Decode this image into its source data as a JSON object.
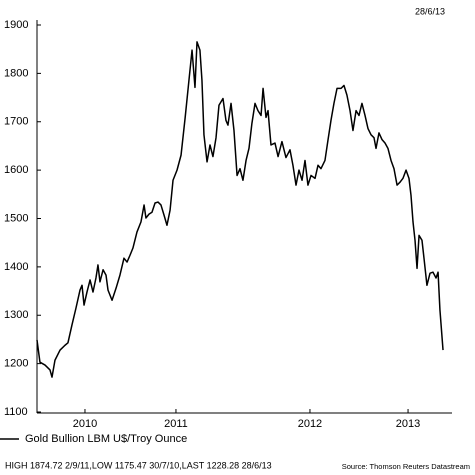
{
  "chart_data": {
    "type": "line",
    "date_label": "28/6/13",
    "footnote": "HIGH 1874.72 2/9/11,LOW 1175.47 30/7/10,LAST 1228.28 28/6/13",
    "source": "Source: Thomson Reuters Datastream",
    "x": [
      2010.45,
      2010.472,
      2010.51,
      2010.547,
      2010.562,
      2010.584,
      2010.622,
      2010.659,
      2010.681,
      2010.711,
      2010.741,
      2010.771,
      2010.786,
      2010.801,
      2010.823,
      2010.846,
      2010.868,
      2010.89,
      2010.905,
      2010.92,
      2010.943,
      2010.965,
      2010.98,
      2011.01,
      2011.04,
      2011.069,
      2011.099,
      2011.122,
      2011.144,
      2011.166,
      2011.196,
      2011.226,
      2011.249,
      2011.263,
      2011.286,
      2011.308,
      2011.331,
      2011.353,
      2011.375,
      2011.398,
      2011.42,
      2011.443,
      2011.465,
      2011.495,
      2011.525,
      2011.555,
      2011.584,
      2011.607,
      2011.629,
      2011.644,
      2011.666,
      2011.681,
      2011.696,
      2011.719,
      2011.741,
      2011.763,
      2011.786,
      2011.808,
      2011.838,
      2011.86,
      2011.875,
      2011.898,
      2011.92,
      2011.943,
      2011.965,
      2011.987,
      2012.01,
      2012.032,
      2012.054,
      2012.077,
      2012.099,
      2012.122,
      2012.137,
      2012.159,
      2012.174,
      2012.196,
      2012.226,
      2012.249,
      2012.278,
      2012.308,
      2012.338,
      2012.36,
      2012.383,
      2012.405,
      2012.428,
      2012.45,
      2012.472,
      2012.495,
      2012.525,
      2012.547,
      2012.569,
      2012.599,
      2012.622,
      2012.644,
      2012.666,
      2012.689,
      2012.719,
      2012.741,
      2012.763,
      2012.786,
      2012.808,
      2012.831,
      2012.853,
      2012.875,
      2012.898,
      2012.92,
      2012.943,
      2012.965,
      2012.98,
      2013.002,
      2013.025,
      2013.047,
      2013.069,
      2013.092,
      2013.114,
      2013.137,
      2013.159,
      2013.181,
      2013.204,
      2013.226,
      2013.241,
      2013.256,
      2013.271,
      2013.286,
      2013.301,
      2013.323,
      2013.338,
      2013.36,
      2013.383,
      2013.405,
      2013.428,
      2013.443,
      2013.457,
      2013.48
    ],
    "series": [
      {
        "name": "Gold Bullion LBM U$/Troy Ounce",
        "color": "#000000",
        "values": [
          1249,
          1203,
          1197,
          1187,
          1172,
          1207,
          1228,
          1238,
          1243,
          1280,
          1315,
          1352,
          1362,
          1321,
          1348,
          1373,
          1348,
          1377,
          1404,
          1369,
          1394,
          1383,
          1352,
          1331,
          1356,
          1383,
          1418,
          1410,
          1424,
          1439,
          1472,
          1493,
          1528,
          1501,
          1509,
          1513,
          1532,
          1534,
          1528,
          1507,
          1486,
          1517,
          1579,
          1600,
          1631,
          1707,
          1786,
          1848,
          1771,
          1865,
          1848,
          1786,
          1673,
          1617,
          1652,
          1628,
          1667,
          1734,
          1748,
          1703,
          1693,
          1738,
          1682,
          1589,
          1603,
          1579,
          1620,
          1645,
          1697,
          1738,
          1723,
          1713,
          1769,
          1709,
          1723,
          1652,
          1656,
          1628,
          1659,
          1626,
          1642,
          1610,
          1569,
          1600,
          1579,
          1620,
          1569,
          1589,
          1583,
          1610,
          1603,
          1620,
          1663,
          1703,
          1738,
          1769,
          1769,
          1775,
          1755,
          1723,
          1682,
          1723,
          1713,
          1738,
          1713,
          1686,
          1673,
          1667,
          1645,
          1677,
          1663,
          1656,
          1645,
          1620,
          1603,
          1569,
          1575,
          1583,
          1600,
          1583,
          1548,
          1493,
          1455,
          1397,
          1465,
          1455,
          1418,
          1362,
          1387,
          1389,
          1377,
          1389,
          1311,
          1228
        ]
      }
    ],
    "xlim": [
      2010.45,
      2013.547
    ],
    "ylim": [
      1100,
      1900
    ],
    "xticks": [
      {
        "value": 2010.808,
        "label": "2010"
      },
      {
        "value": 2011.487,
        "label": "2011"
      },
      {
        "value": 2012.487,
        "label": "2012"
      },
      {
        "value": 2013.219,
        "label": "2013"
      }
    ],
    "yticks": [
      1100,
      1200,
      1300,
      1400,
      1500,
      1600,
      1700,
      1800,
      1900
    ]
  }
}
